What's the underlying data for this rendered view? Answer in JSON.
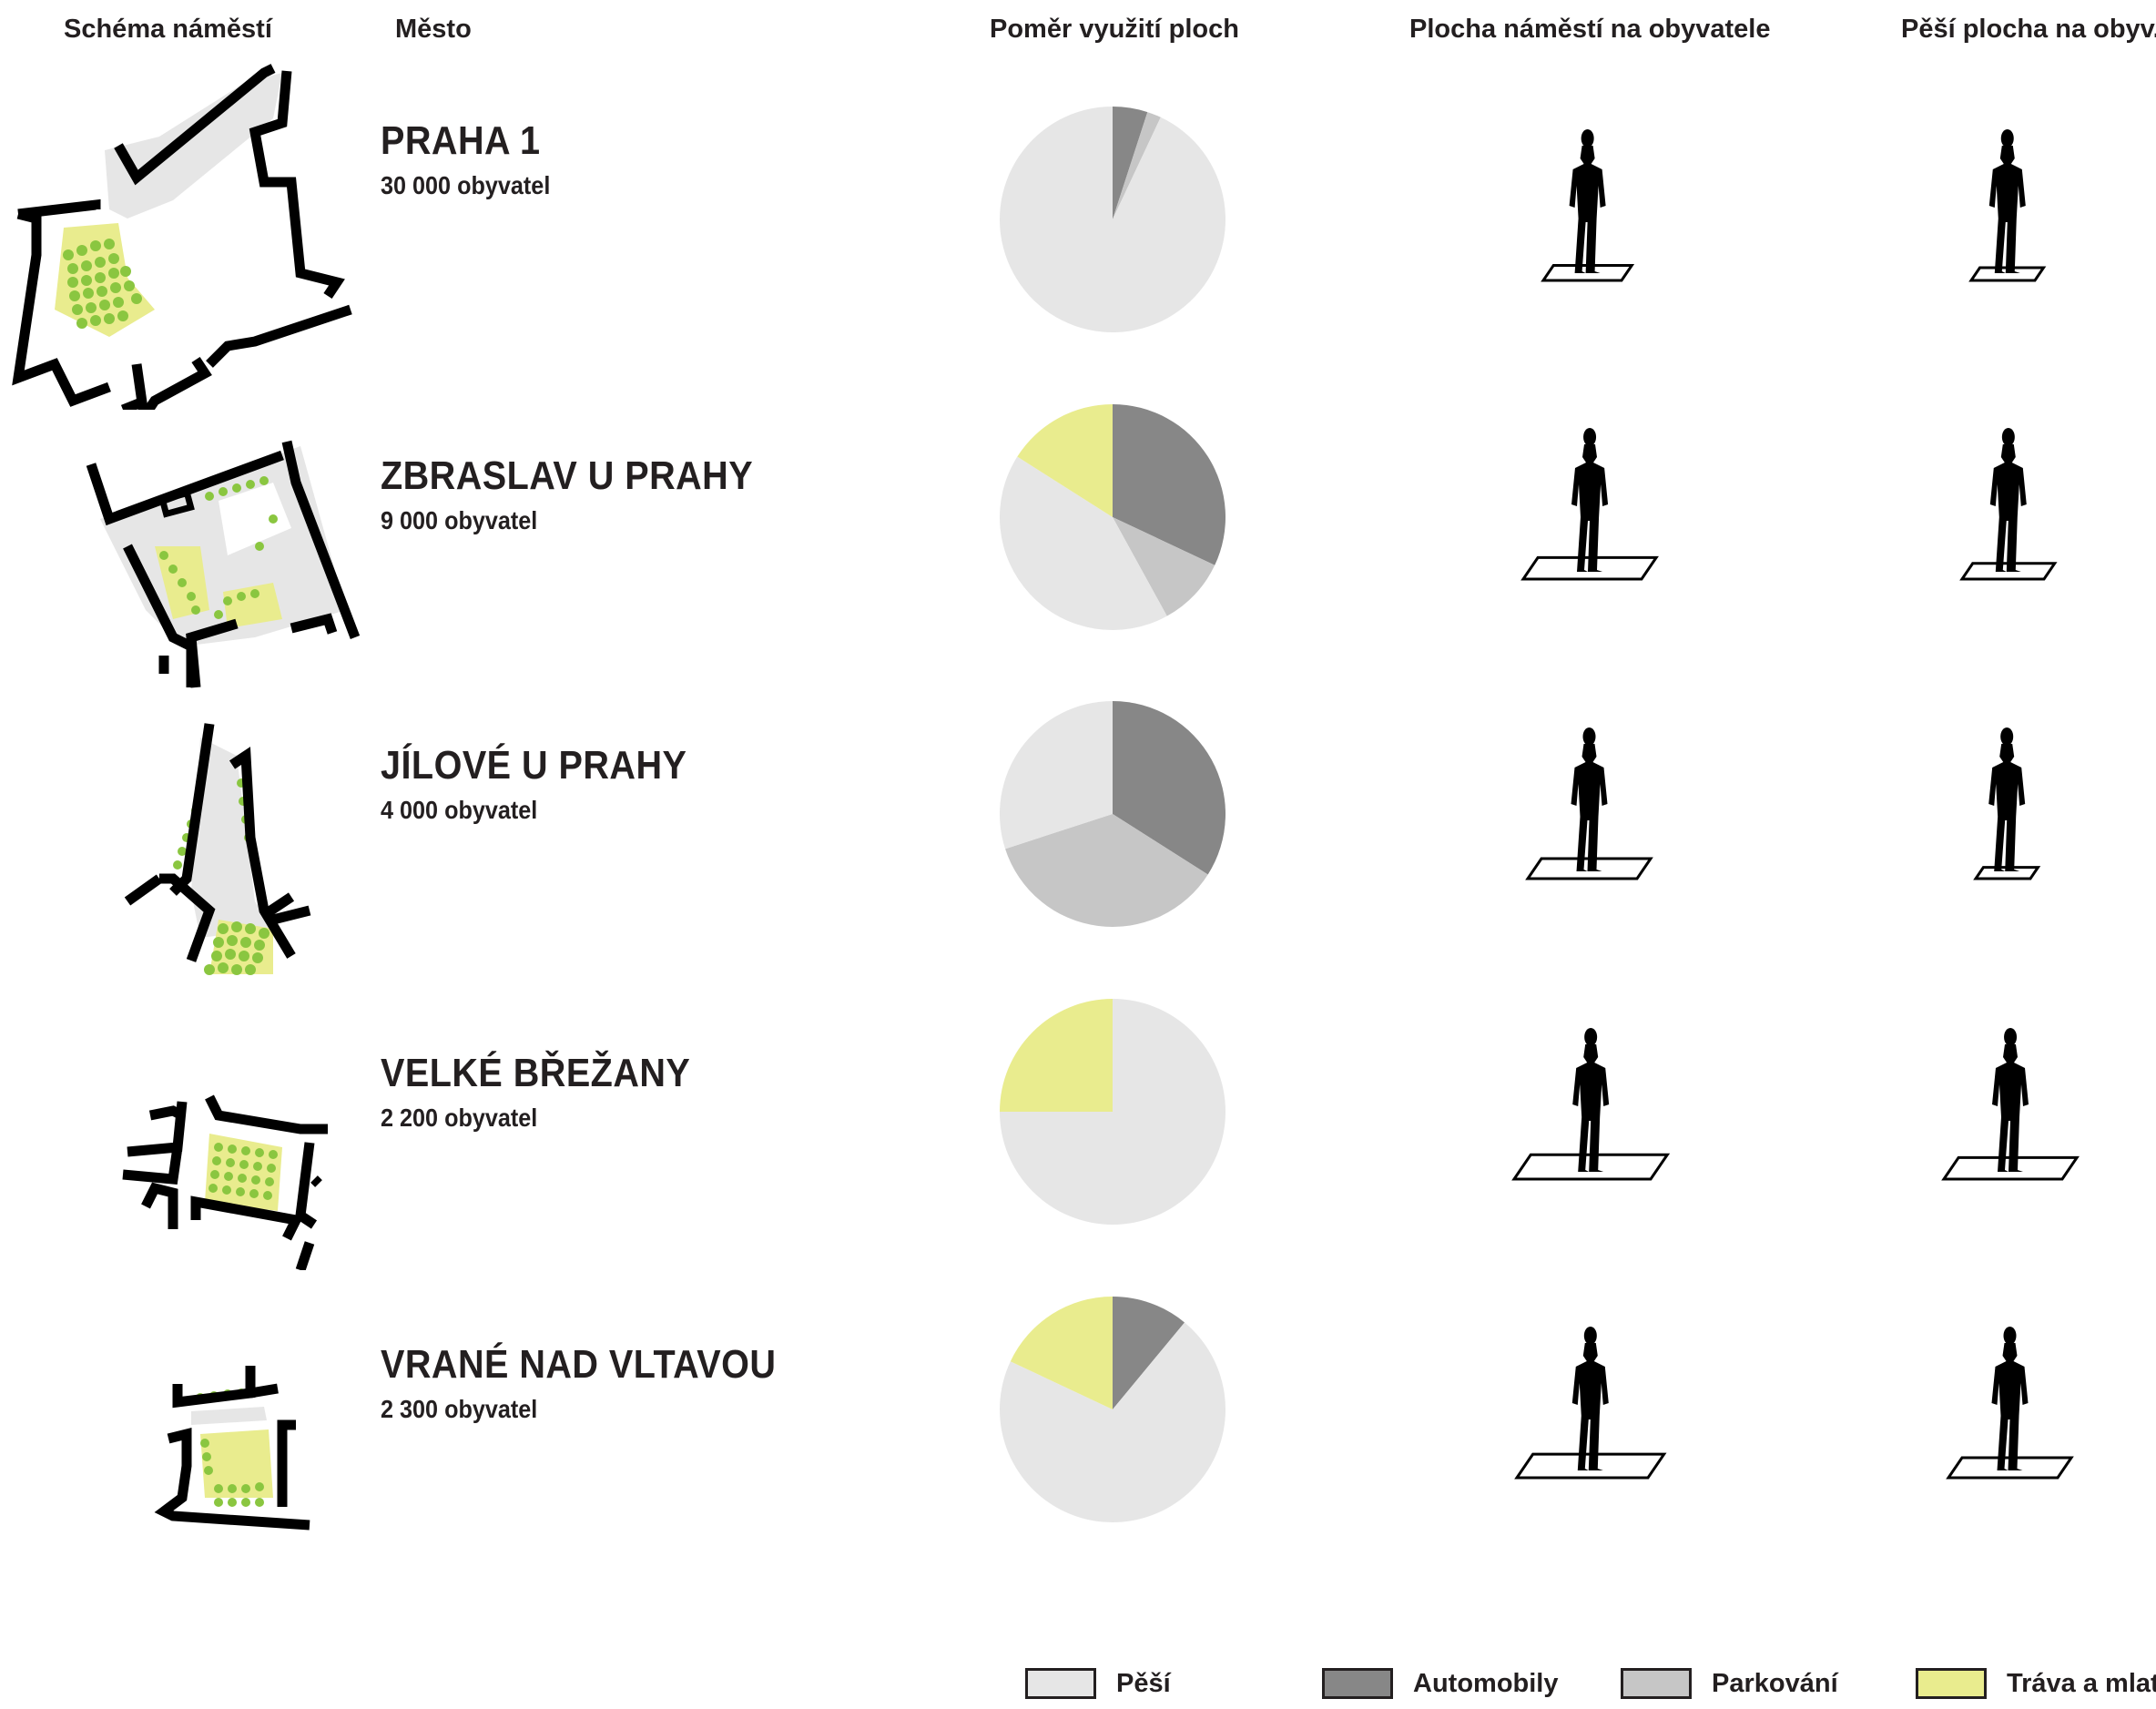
{
  "headers": {
    "schema": "Schéma náměstí",
    "city": "Město",
    "ratio": "Poměr využití ploch",
    "area_per_resident": "Plocha náměstí na obyvatele",
    "pedestrian_per_resident": "Pěší plocha na obyv."
  },
  "colors": {
    "pesi": "#e6e6e6",
    "automobily": "#878787",
    "parkovani": "#c6c6c6",
    "trava": "#e9ec8e",
    "tree": "#8ac640",
    "outline": "#000000"
  },
  "rows": [
    {
      "name": "PRAHA 1",
      "population": "30 000 obyvatel"
    },
    {
      "name": "ZBRASLAV U PRAHY",
      "population": "9 000 obyvatel"
    },
    {
      "name": "JÍLOVÉ U PRAHY",
      "population": "4 000 obyvatel"
    },
    {
      "name": "VELKÉ BŘEŽANY",
      "population": "2 200 obyvatel"
    },
    {
      "name": "VRANÉ NAD VLTAVOU",
      "population": "2 300 obyvatel"
    }
  ],
  "chart_data": {
    "type": "pie",
    "title": "Poměr využití ploch",
    "categories": [
      "Pěší",
      "Automobily",
      "Parkování",
      "Tráva a mlat"
    ],
    "series": [
      {
        "name": "PRAHA 1",
        "values": [
          93,
          5,
          2,
          0
        ]
      },
      {
        "name": "ZBRASLAV U PRAHY",
        "values": [
          42,
          32,
          10,
          16
        ]
      },
      {
        "name": "JÍLOVÉ U PRAHY",
        "values": [
          30,
          34,
          36,
          0
        ]
      },
      {
        "name": "VELKÉ BŘEŽANY",
        "values": [
          75,
          0,
          0,
          25
        ]
      },
      {
        "name": "VRANÉ NAD VLTAVOU",
        "values": [
          71,
          11,
          0,
          18
        ]
      }
    ],
    "legend": "bottom",
    "area_per_resident_relative": [
      0.33,
      0.55,
      0.5,
      0.65,
      0.62
    ],
    "pedestrian_per_resident_relative": [
      0.25,
      0.35,
      0.2,
      0.55,
      0.5
    ]
  },
  "legend": [
    {
      "label": "Pěší",
      "key": "pesi"
    },
    {
      "label": "Automobily",
      "key": "automobily"
    },
    {
      "label": "Parkování",
      "key": "parkovani"
    },
    {
      "label": "Tráva a mlat",
      "key": "trava"
    }
  ]
}
